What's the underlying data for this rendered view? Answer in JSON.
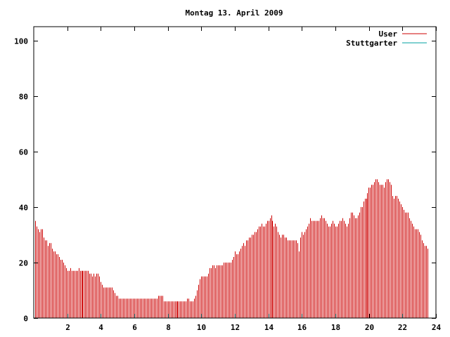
{
  "chart_data": {
    "type": "bar",
    "title": "Montag 13. April 2009",
    "xlabel": "",
    "ylabel": "",
    "xlim": [
      0,
      24
    ],
    "ylim": [
      0,
      105
    ],
    "x_ticks": [
      2,
      4,
      6,
      8,
      10,
      12,
      14,
      16,
      18,
      20,
      22,
      24
    ],
    "y_ticks": [
      0,
      20,
      40,
      60,
      80,
      100
    ],
    "grid": false,
    "legend_position": "top-right",
    "bar_interval_hours": 0.0833,
    "series": [
      {
        "name": "User",
        "color": "#cc0000",
        "values": [
          35,
          33,
          32,
          31,
          32,
          32,
          29,
          28,
          28,
          26,
          27,
          27,
          25,
          24,
          24,
          23,
          23,
          22,
          21,
          21,
          20,
          19,
          18,
          17,
          17,
          18,
          17,
          17,
          17,
          17,
          17,
          18,
          17,
          17,
          17,
          17,
          17,
          17,
          17,
          16,
          16,
          15,
          16,
          15,
          16,
          16,
          15,
          13,
          12,
          11,
          11,
          11,
          11,
          11,
          11,
          11,
          10,
          9,
          8,
          8,
          7,
          7,
          7,
          7,
          7,
          7,
          7,
          7,
          7,
          7,
          7,
          7,
          7,
          7,
          7,
          7,
          7,
          7,
          7,
          7,
          7,
          7,
          7,
          7,
          7,
          7,
          7,
          7,
          8,
          8,
          8,
          8,
          6,
          6,
          6,
          6,
          6,
          6,
          6,
          6,
          6,
          6,
          6,
          6,
          6,
          6,
          6,
          6,
          6,
          7,
          7,
          6,
          6,
          6,
          7,
          8,
          10,
          12,
          14,
          15,
          15,
          15,
          15,
          15,
          16,
          18,
          18,
          19,
          19,
          18,
          19,
          19,
          19,
          19,
          19,
          20,
          20,
          20,
          20,
          20,
          20,
          21,
          22,
          24,
          23,
          23,
          24,
          25,
          26,
          27,
          26,
          28,
          28,
          29,
          29,
          30,
          30,
          31,
          31,
          32,
          33,
          33,
          34,
          33,
          33,
          34,
          35,
          35,
          36,
          37,
          35,
          33,
          34,
          33,
          31,
          30,
          29,
          30,
          30,
          29,
          29,
          28,
          28,
          28,
          28,
          28,
          28,
          28,
          27,
          24,
          29,
          31,
          30,
          31,
          32,
          33,
          34,
          36,
          35,
          35,
          35,
          35,
          35,
          35,
          36,
          37,
          36,
          36,
          35,
          34,
          33,
          33,
          34,
          35,
          34,
          33,
          33,
          34,
          35,
          35,
          36,
          35,
          34,
          33,
          34,
          36,
          38,
          38,
          37,
          36,
          36,
          37,
          38,
          40,
          40,
          42,
          43,
          43,
          45,
          47,
          47,
          48,
          48,
          49,
          50,
          50,
          49,
          48,
          48,
          48,
          47,
          49,
          50,
          50,
          49,
          48,
          44,
          43,
          44,
          44,
          43,
          42,
          41,
          40,
          39,
          38,
          38,
          38,
          36,
          35,
          34,
          33,
          32,
          32,
          32,
          31,
          30,
          28,
          27,
          26,
          26,
          25
        ]
      },
      {
        "name": "Stuttgarter",
        "color": "#00a0a0",
        "values": []
      }
    ]
  }
}
